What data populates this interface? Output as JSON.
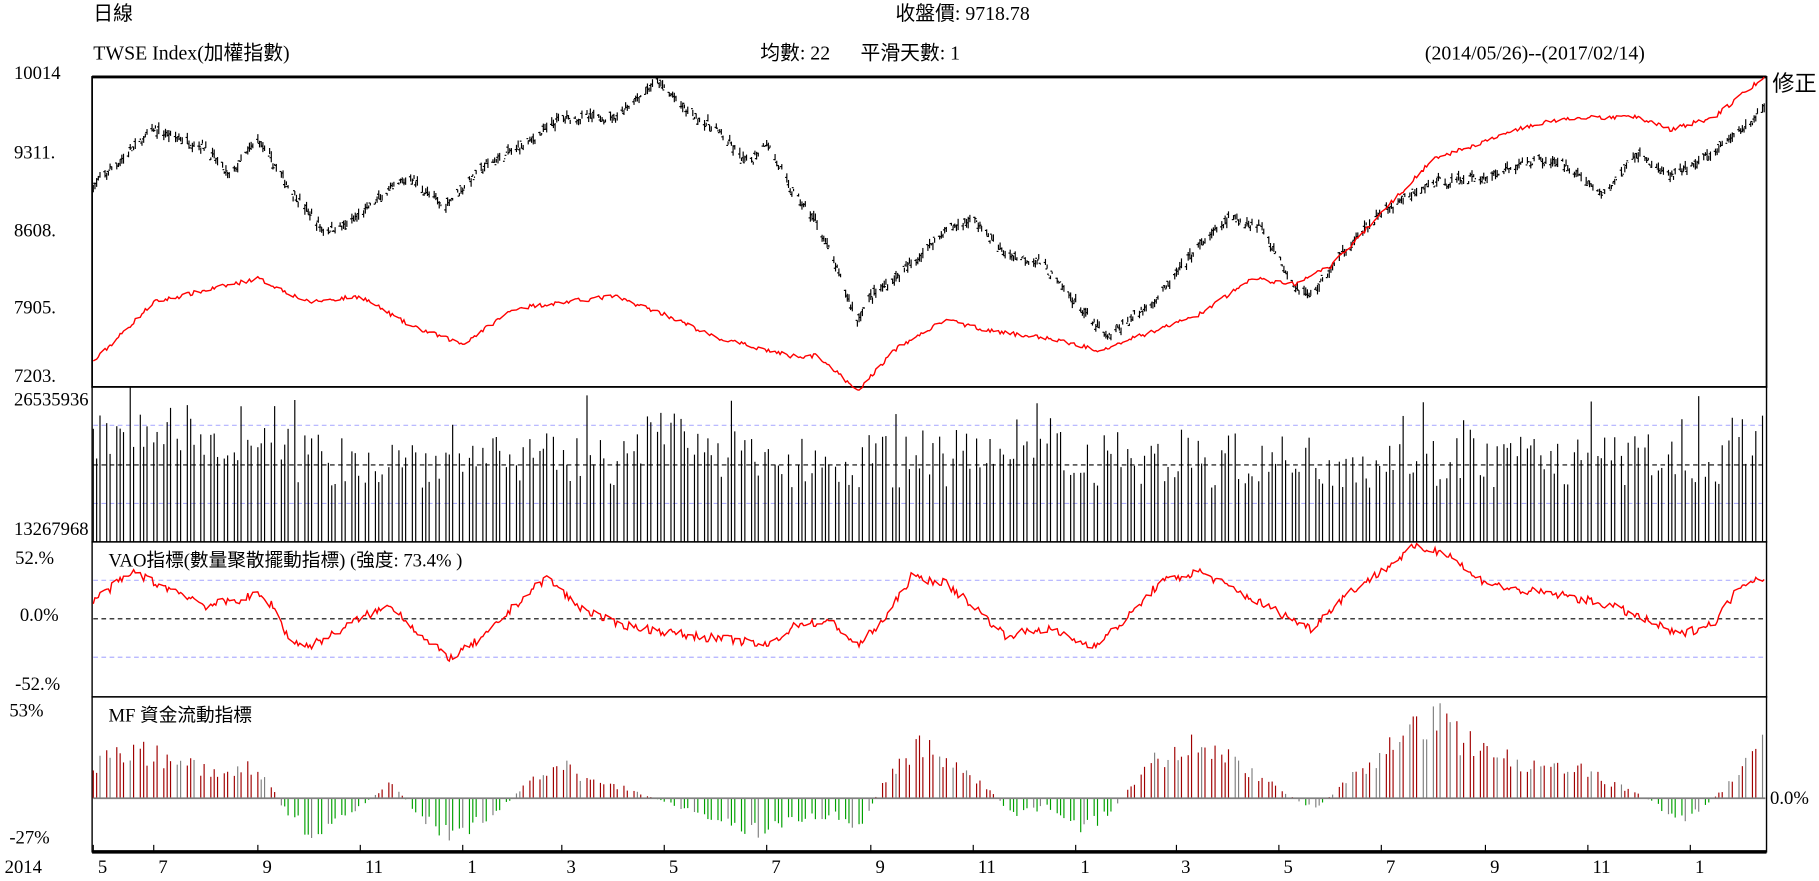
{
  "header": {
    "period": "日線",
    "close_label": "收盤價: 9718.78",
    "symbol": "TWSE Index(加權指數)",
    "ma_label": "均數: 22",
    "smooth_label": "平滑天數: 1",
    "date_range": "(2014/05/26)--(2017/02/14)",
    "adjust_label": "修正"
  },
  "colors": {
    "price": "#000000",
    "overlay": "#ff0000",
    "vao": "#ff0000",
    "mf_positive": "#a00000",
    "mf_negative": "#00a000",
    "mf_neutral": "#808080",
    "guide": "#b0b0ff"
  },
  "chart_data": [
    {
      "type": "line",
      "panel": "price",
      "y_ticks": [
        "10014",
        "9311.",
        "8608.",
        "7905.",
        "7203."
      ],
      "ylim": [
        7203,
        10014
      ],
      "series": [
        {
          "style": "ohlc",
          "color": "#000000",
          "points": [
            [
              "2014-05-26",
              9020
            ],
            [
              "2014-07-01",
              9538
            ],
            [
              "2014-08-01",
              9376
            ],
            [
              "2014-08-15",
              9106
            ],
            [
              "2014-09-01",
              9452
            ],
            [
              "2014-09-20",
              9000
            ],
            [
              "2014-10-10",
              8620
            ],
            [
              "2014-10-25",
              8674
            ],
            [
              "2014-11-15",
              8944
            ],
            [
              "2014-12-01",
              9106
            ],
            [
              "2014-12-20",
              8836
            ],
            [
              "2015-01-15",
              9214
            ],
            [
              "2015-02-10",
              9430
            ],
            [
              "2015-03-01",
              9646
            ],
            [
              "2015-04-01",
              9646
            ],
            [
              "2015-04-27",
              9970
            ],
            [
              "2015-05-15",
              9700
            ],
            [
              "2015-06-01",
              9538
            ],
            [
              "2015-06-20",
              9214
            ],
            [
              "2015-07-01",
              9430
            ],
            [
              "2015-07-15",
              9000
            ],
            [
              "2015-08-01",
              8674
            ],
            [
              "2015-08-24",
              7809
            ],
            [
              "2015-09-01",
              8025
            ],
            [
              "2015-09-20",
              8241
            ],
            [
              "2015-10-15",
              8620
            ],
            [
              "2015-11-01",
              8728
            ],
            [
              "2015-11-20",
              8403
            ],
            [
              "2015-12-10",
              8349
            ],
            [
              "2016-01-10",
              7809
            ],
            [
              "2016-01-20",
              7646
            ],
            [
              "2016-02-20",
              8025
            ],
            [
              "2016-03-10",
              8403
            ],
            [
              "2016-04-01",
              8728
            ],
            [
              "2016-04-20",
              8674
            ],
            [
              "2016-05-10",
              8133
            ],
            [
              "2016-05-20",
              8025
            ],
            [
              "2016-06-10",
              8457
            ],
            [
              "2016-07-01",
              8782
            ],
            [
              "2016-08-01",
              9052
            ],
            [
              "2016-09-01",
              9106
            ],
            [
              "2016-10-01",
              9268
            ],
            [
              "2016-10-20",
              9214
            ],
            [
              "2016-11-10",
              8944
            ],
            [
              "2016-12-01",
              9322
            ],
            [
              "2016-12-20",
              9106
            ],
            [
              "2017-01-15",
              9322
            ],
            [
              "2017-02-14",
              9718.78
            ]
          ]
        },
        {
          "style": "line",
          "color": "#ff0000",
          "points": [
            [
              "2014-05-26",
              7430
            ],
            [
              "2014-07-01",
              7971
            ],
            [
              "2014-09-01",
              8187
            ],
            [
              "2014-10-01",
              7971
            ],
            [
              "2014-11-01",
              8025
            ],
            [
              "2014-12-01",
              7755
            ],
            [
              "2015-01-01",
              7592
            ],
            [
              "2015-02-01",
              7917
            ],
            [
              "2015-04-01",
              8025
            ],
            [
              "2015-05-01",
              7863
            ],
            [
              "2015-06-01",
              7646
            ],
            [
              "2015-07-01",
              7538
            ],
            [
              "2015-07-15",
              7484
            ],
            [
              "2015-08-01",
              7484
            ],
            [
              "2015-08-24",
              7160
            ],
            [
              "2015-09-15",
              7538
            ],
            [
              "2015-10-15",
              7809
            ],
            [
              "2015-11-15",
              7700
            ],
            [
              "2015-12-15",
              7646
            ],
            [
              "2016-01-15",
              7538
            ],
            [
              "2016-02-15",
              7700
            ],
            [
              "2016-03-15",
              7863
            ],
            [
              "2016-04-15",
              8187
            ],
            [
              "2016-05-10",
              8133
            ],
            [
              "2016-06-01",
              8295
            ],
            [
              "2016-07-01",
              8782
            ],
            [
              "2016-08-01",
              9268
            ],
            [
              "2016-09-01",
              9430
            ],
            [
              "2016-10-01",
              9592
            ],
            [
              "2016-11-01",
              9646
            ],
            [
              "2016-12-01",
              9646
            ],
            [
              "2016-12-20",
              9538
            ],
            [
              "2017-01-15",
              9646
            ],
            [
              "2017-02-14",
              10014
            ]
          ]
        }
      ]
    },
    {
      "type": "bar",
      "panel": "volume",
      "y_ticks": [
        "26535936",
        "13267968"
      ],
      "ylim": [
        0,
        30000000
      ]
    },
    {
      "type": "line",
      "panel": "vao",
      "title": "VAO指標(數量聚散擺動指標) (強度: 73.4% )",
      "y_ticks": [
        "52.%",
        "0.0%",
        "-52.%"
      ],
      "ylim": [
        -70,
        70
      ],
      "series": [
        {
          "color": "#ff0000",
          "points": [
            [
              "2014-05-26",
              17
            ],
            [
              "2014-06-10",
              33
            ],
            [
              "2014-06-20",
              43
            ],
            [
              "2014-07-01",
              33
            ],
            [
              "2014-07-20",
              22
            ],
            [
              "2014-08-01",
              12
            ],
            [
              "2014-08-20",
              17
            ],
            [
              "2014-09-01",
              22
            ],
            [
              "2014-09-10",
              12
            ],
            [
              "2014-09-20",
              -20
            ],
            [
              "2014-10-01",
              -25
            ],
            [
              "2014-10-15",
              -15
            ],
            [
              "2014-11-01",
              1
            ],
            [
              "2014-11-20",
              12
            ],
            [
              "2014-12-10",
              -20
            ],
            [
              "2014-12-25",
              -36
            ],
            [
              "2015-01-15",
              -15
            ],
            [
              "2015-02-01",
              12
            ],
            [
              "2015-02-20",
              38
            ],
            [
              "2015-03-10",
              12
            ],
            [
              "2015-04-01",
              -4
            ],
            [
              "2015-04-20",
              -9
            ],
            [
              "2015-05-15",
              -15
            ],
            [
              "2015-06-15",
              -20
            ],
            [
              "2015-07-01",
              -25
            ],
            [
              "2015-07-20",
              -4
            ],
            [
              "2015-08-10",
              -4
            ],
            [
              "2015-08-24",
              -25
            ],
            [
              "2015-09-10",
              1
            ],
            [
              "2015-09-25",
              38
            ],
            [
              "2015-10-15",
              33
            ],
            [
              "2015-11-01",
              12
            ],
            [
              "2015-11-20",
              -15
            ],
            [
              "2015-12-15",
              -9
            ],
            [
              "2016-01-10",
              -25
            ],
            [
              "2016-01-20",
              -15
            ],
            [
              "2016-02-01",
              1
            ],
            [
              "2016-02-20",
              33
            ],
            [
              "2016-03-15",
              43
            ],
            [
              "2016-04-10",
              22
            ],
            [
              "2016-05-01",
              6
            ],
            [
              "2016-05-20",
              -9
            ],
            [
              "2016-06-10",
              22
            ],
            [
              "2016-07-01",
              43
            ],
            [
              "2016-07-20",
              65
            ],
            [
              "2016-08-10",
              60
            ],
            [
              "2016-08-25",
              38
            ],
            [
              "2016-09-15",
              27
            ],
            [
              "2016-10-15",
              22
            ],
            [
              "2016-11-15",
              12
            ],
            [
              "2016-12-10",
              -4
            ],
            [
              "2016-12-25",
              -15
            ],
            [
              "2017-01-15",
              -4
            ],
            [
              "2017-02-01",
              33
            ],
            [
              "2017-02-14",
              38
            ]
          ]
        }
      ]
    },
    {
      "type": "bar",
      "panel": "mf",
      "title": "MF 資金流動指標",
      "y_ticks": [
        "53%",
        "-27%"
      ],
      "zero_label": "0.0%",
      "ylim": [
        -27,
        53
      ],
      "series": [
        {
          "points": [
            [
              "2014-05-26",
              20
            ],
            [
              "2014-06-15",
              30
            ],
            [
              "2014-07-01",
              27
            ],
            [
              "2014-07-20",
              22
            ],
            [
              "2014-08-10",
              12
            ],
            [
              "2014-08-25",
              20
            ],
            [
              "2014-09-05",
              15
            ],
            [
              "2014-09-15",
              -5
            ],
            [
              "2014-10-01",
              -20
            ],
            [
              "2014-10-15",
              -15
            ],
            [
              "2014-11-01",
              -5
            ],
            [
              "2014-11-20",
              10
            ],
            [
              "2014-12-05",
              -10
            ],
            [
              "2014-12-25",
              -23
            ],
            [
              "2015-01-10",
              -15
            ],
            [
              "2015-01-25",
              -5
            ],
            [
              "2015-02-10",
              10
            ],
            [
              "2015-02-28",
              25
            ],
            [
              "2015-03-15",
              10
            ],
            [
              "2015-04-01",
              8
            ],
            [
              "2015-04-20",
              2
            ],
            [
              "2015-05-10",
              -5
            ],
            [
              "2015-06-01",
              -12
            ],
            [
              "2015-06-20",
              -18
            ],
            [
              "2015-07-01",
              -20
            ],
            [
              "2015-07-20",
              -12
            ],
            [
              "2015-08-10",
              -10
            ],
            [
              "2015-08-25",
              -20
            ],
            [
              "2015-09-05",
              3
            ],
            [
              "2015-09-20",
              25
            ],
            [
              "2015-10-01",
              33
            ],
            [
              "2015-10-20",
              20
            ],
            [
              "2015-11-10",
              5
            ],
            [
              "2015-11-25",
              -10
            ],
            [
              "2015-12-15",
              -5
            ],
            [
              "2016-01-05",
              -18
            ],
            [
              "2016-01-20",
              -10
            ],
            [
              "2016-02-01",
              5
            ],
            [
              "2016-02-20",
              25
            ],
            [
              "2016-03-10",
              32
            ],
            [
              "2016-04-01",
              25
            ],
            [
              "2016-04-25",
              10
            ],
            [
              "2016-05-15",
              -3
            ],
            [
              "2016-05-25",
              -5
            ],
            [
              "2016-06-10",
              10
            ],
            [
              "2016-07-01",
              25
            ],
            [
              "2016-07-20",
              45
            ],
            [
              "2016-08-01",
              50
            ],
            [
              "2016-08-20",
              35
            ],
            [
              "2016-09-10",
              25
            ],
            [
              "2016-10-01",
              22
            ],
            [
              "2016-10-20",
              20
            ],
            [
              "2016-11-15",
              10
            ],
            [
              "2016-12-10",
              -2
            ],
            [
              "2016-12-25",
              -15
            ],
            [
              "2017-01-10",
              -5
            ],
            [
              "2017-01-20",
              5
            ],
            [
              "2017-02-01",
              20
            ],
            [
              "2017-02-14",
              32
            ]
          ]
        }
      ]
    }
  ],
  "x_axis": {
    "year_label": "2014",
    "months": [
      {
        "label": "5",
        "date": "2014-05-26"
      },
      {
        "label": "7",
        "date": "2014-07-01"
      },
      {
        "label": "9",
        "date": "2014-09-01"
      },
      {
        "label": "11",
        "date": "2014-11-01"
      },
      {
        "label": "1",
        "date": "2015-01-01"
      },
      {
        "label": "3",
        "date": "2015-03-01"
      },
      {
        "label": "5",
        "date": "2015-05-01"
      },
      {
        "label": "7",
        "date": "2015-07-01"
      },
      {
        "label": "9",
        "date": "2015-09-01"
      },
      {
        "label": "11",
        "date": "2015-11-01"
      },
      {
        "label": "1",
        "date": "2016-01-01"
      },
      {
        "label": "3",
        "date": "2016-03-01"
      },
      {
        "label": "5",
        "date": "2016-05-01"
      },
      {
        "label": "7",
        "date": "2016-07-01"
      },
      {
        "label": "9",
        "date": "2016-09-01"
      },
      {
        "label": "11",
        "date": "2016-11-01"
      },
      {
        "label": "1",
        "date": "2017-01-01"
      }
    ]
  }
}
